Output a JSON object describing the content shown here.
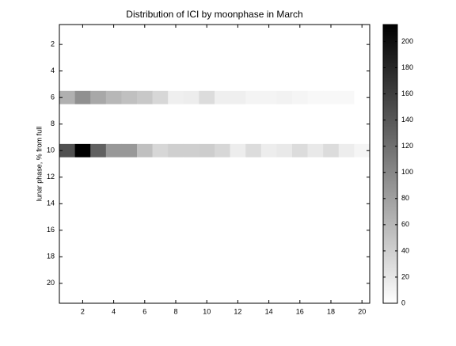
{
  "chart_data": {
    "type": "heatmap",
    "title": "Distribution of ICI by moonphase in March",
    "ylabel": "lunar phase, % from full",
    "colormap": "gray_r",
    "x": [
      1,
      2,
      3,
      4,
      5,
      6,
      7,
      8,
      9,
      10,
      11,
      12,
      13,
      14,
      15,
      16,
      17,
      18,
      19,
      20
    ],
    "y": [
      1,
      2,
      3,
      4,
      5,
      6,
      7,
      8,
      9,
      10,
      11,
      12,
      13,
      14,
      15,
      16,
      17,
      18,
      19,
      20,
      21
    ],
    "z": [
      [
        0,
        0,
        0,
        0,
        0,
        0,
        0,
        0,
        0,
        0,
        0,
        0,
        0,
        0,
        0,
        0,
        0,
        0,
        0,
        0
      ],
      [
        0,
        0,
        0,
        0,
        0,
        0,
        0,
        0,
        0,
        0,
        0,
        0,
        0,
        0,
        0,
        0,
        0,
        0,
        0,
        0
      ],
      [
        0,
        0,
        0,
        0,
        0,
        0,
        0,
        0,
        0,
        0,
        0,
        0,
        0,
        0,
        0,
        0,
        0,
        0,
        0,
        0
      ],
      [
        0,
        0,
        0,
        0,
        0,
        0,
        0,
        0,
        0,
        0,
        0,
        0,
        0,
        0,
        0,
        0,
        0,
        0,
        0,
        0
      ],
      [
        0,
        0,
        0,
        0,
        0,
        0,
        0,
        0,
        0,
        0,
        0,
        0,
        0,
        0,
        0,
        0,
        0,
        0,
        0,
        0
      ],
      [
        66,
        93,
        73,
        60,
        53,
        46,
        33,
        13,
        15,
        29,
        13,
        13,
        9,
        9,
        11,
        8,
        6,
        6,
        6,
        0
      ],
      [
        0,
        0,
        0,
        0,
        0,
        0,
        0,
        0,
        0,
        0,
        0,
        0,
        0,
        0,
        0,
        0,
        0,
        0,
        0,
        0
      ],
      [
        0,
        0,
        0,
        0,
        0,
        0,
        0,
        0,
        0,
        0,
        0,
        0,
        0,
        0,
        0,
        0,
        0,
        0,
        0,
        0
      ],
      [
        0,
        0,
        0,
        0,
        0,
        0,
        0,
        0,
        0,
        0,
        0,
        0,
        0,
        0,
        0,
        0,
        0,
        0,
        0,
        0
      ],
      [
        146,
        213,
        133,
        86,
        86,
        53,
        33,
        40,
        40,
        42,
        33,
        15,
        29,
        15,
        18,
        29,
        18,
        29,
        15,
        8
      ],
      [
        0,
        0,
        0,
        0,
        0,
        0,
        0,
        0,
        0,
        0,
        0,
        0,
        0,
        0,
        0,
        0,
        0,
        0,
        0,
        0
      ],
      [
        0,
        0,
        0,
        0,
        0,
        0,
        0,
        0,
        0,
        0,
        0,
        0,
        0,
        0,
        0,
        0,
        0,
        0,
        0,
        0
      ],
      [
        0,
        0,
        0,
        0,
        0,
        0,
        0,
        0,
        0,
        0,
        0,
        0,
        0,
        0,
        0,
        0,
        0,
        0,
        0,
        0
      ],
      [
        0,
        0,
        0,
        0,
        0,
        0,
        0,
        0,
        0,
        0,
        0,
        0,
        0,
        0,
        0,
        0,
        0,
        0,
        0,
        0
      ],
      [
        0,
        0,
        0,
        0,
        0,
        0,
        0,
        0,
        0,
        0,
        0,
        0,
        0,
        0,
        0,
        0,
        0,
        0,
        0,
        0
      ],
      [
        0,
        0,
        0,
        0,
        0,
        0,
        0,
        0,
        0,
        0,
        0,
        0,
        0,
        0,
        0,
        0,
        0,
        0,
        0,
        0
      ],
      [
        0,
        0,
        0,
        0,
        0,
        0,
        0,
        0,
        0,
        0,
        0,
        0,
        0,
        0,
        0,
        0,
        0,
        0,
        0,
        0
      ],
      [
        0,
        0,
        0,
        0,
        0,
        0,
        0,
        0,
        0,
        0,
        0,
        0,
        0,
        0,
        0,
        0,
        0,
        0,
        0,
        0
      ],
      [
        0,
        0,
        0,
        0,
        0,
        0,
        0,
        0,
        0,
        0,
        0,
        0,
        0,
        0,
        0,
        0,
        0,
        0,
        0,
        0
      ],
      [
        0,
        0,
        0,
        0,
        0,
        0,
        0,
        0,
        0,
        0,
        0,
        0,
        0,
        0,
        0,
        0,
        0,
        0,
        0,
        0
      ],
      [
        0,
        0,
        0,
        0,
        0,
        0,
        0,
        0,
        0,
        0,
        0,
        0,
        0,
        0,
        0,
        0,
        0,
        0,
        0,
        0
      ]
    ],
    "xlim": [
      0.5,
      20.5
    ],
    "xticks": [
      2,
      4,
      6,
      8,
      10,
      12,
      14,
      16,
      18,
      20
    ],
    "ylim": [
      0.5,
      21.5
    ],
    "y_reversed": true,
    "yticks": [
      2,
      4,
      6,
      8,
      10,
      12,
      14,
      16,
      18,
      20
    ],
    "clim": [
      0,
      213
    ],
    "cticks": [
      0,
      20,
      40,
      60,
      80,
      100,
      120,
      140,
      160,
      180,
      200
    ]
  }
}
